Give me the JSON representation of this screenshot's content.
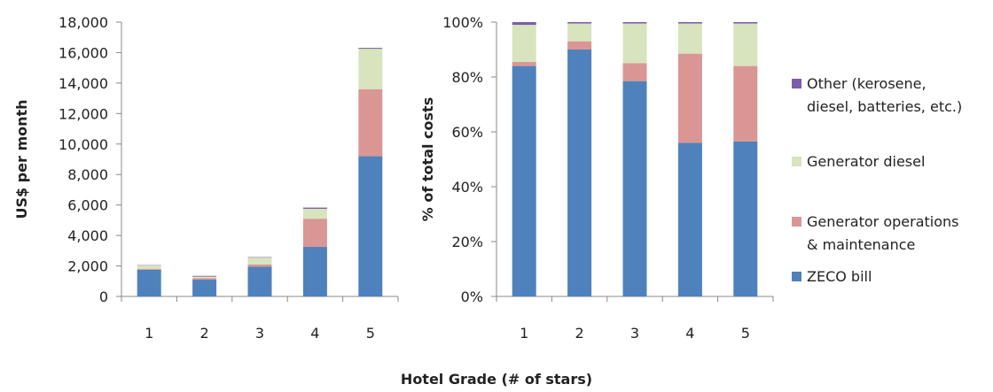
{
  "shared_xlabel": "Hotel Grade (# of stars)",
  "legend": [
    {
      "key": "other",
      "lines": [
        "Other (kerosene,",
        "diesel, batteries, etc.)"
      ],
      "color": "#7b5ea7"
    },
    {
      "key": "diesel",
      "lines": [
        "Generator diesel"
      ],
      "color": "#d7e4bd"
    },
    {
      "key": "om",
      "lines": [
        "Generator operations",
        "& maintenance"
      ],
      "color": "#d99694"
    },
    {
      "key": "zeco",
      "lines": [
        "ZECO bill"
      ],
      "color": "#4f81bd"
    }
  ],
  "chart_data": [
    {
      "type": "bar",
      "stacked": true,
      "ylabel": "US$ per month",
      "xlabel": "Hotel Grade (# of stars)",
      "categories": [
        "1",
        "2",
        "3",
        "4",
        "5"
      ],
      "ylim": [
        0,
        18000
      ],
      "yticks": [
        "0",
        "2,000",
        "4,000",
        "6,000",
        "8,000",
        "10,000",
        "12,000",
        "14,000",
        "16,000",
        "18,000"
      ],
      "series": [
        {
          "name": "ZECO bill",
          "color": "#4f81bd",
          "values": [
            1750,
            1100,
            1950,
            3250,
            9200
          ]
        },
        {
          "name": "Generator operations & maintenance",
          "color": "#d99694",
          "values": [
            50,
            100,
            150,
            1850,
            4400
          ]
        },
        {
          "name": "Generator diesel",
          "color": "#d7e4bd",
          "values": [
            250,
            100,
            450,
            650,
            2650
          ]
        },
        {
          "name": "Other (kerosene, diesel, batteries, etc.)",
          "color": "#7b5ea7",
          "values": [
            20,
            50,
            30,
            80,
            60
          ]
        }
      ]
    },
    {
      "type": "bar",
      "stacked": true,
      "ylabel": "% of total costs",
      "xlabel": "Hotel Grade (# of stars)",
      "categories": [
        "1",
        "2",
        "3",
        "4",
        "5"
      ],
      "ylim": [
        0,
        100
      ],
      "yticks": [
        "0%",
        "20%",
        "40%",
        "60%",
        "80%",
        "100%"
      ],
      "series": [
        {
          "name": "ZECO bill",
          "color": "#4f81bd",
          "values": [
            84,
            90,
            78.5,
            56,
            56.5
          ]
        },
        {
          "name": "Generator operations & maintenance",
          "color": "#d99694",
          "values": [
            1.5,
            3,
            6.5,
            32.5,
            27.5
          ]
        },
        {
          "name": "Generator diesel",
          "color": "#d7e4bd",
          "values": [
            13.5,
            6.5,
            14.5,
            11,
            15.5
          ]
        },
        {
          "name": "Other (kerosene, diesel, batteries, etc.)",
          "color": "#7b5ea7",
          "values": [
            1,
            0.5,
            0.5,
            0.5,
            0.5
          ]
        }
      ]
    }
  ]
}
